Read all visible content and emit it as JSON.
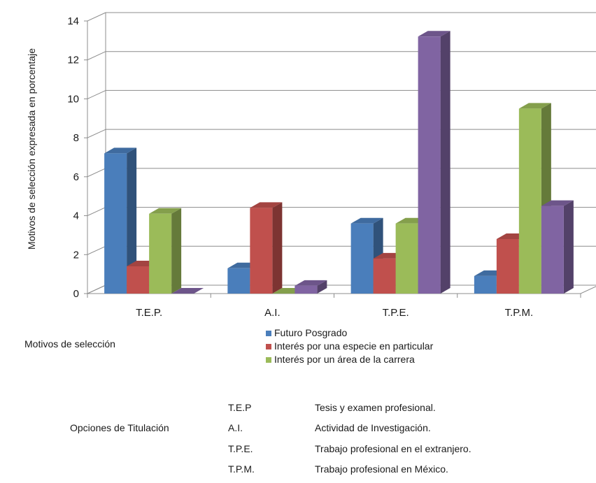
{
  "chart_data": {
    "type": "bar",
    "ylabel": "Motivos de selección expresada en porcentaje",
    "ylim": [
      0,
      14
    ],
    "yticks": [
      0,
      2,
      4,
      6,
      8,
      10,
      12,
      14
    ],
    "grid": true,
    "categories": [
      "T.E.P.",
      "A.I.",
      "T.P.E.",
      "T.P.M."
    ],
    "series": [
      {
        "name": "Futuro Posgrado",
        "color": "#4a7ebb",
        "values": [
          7.2,
          1.3,
          3.6,
          0.9
        ]
      },
      {
        "name": "Interés por una especie en particular",
        "color": "#c0504d",
        "values": [
          1.4,
          4.4,
          1.8,
          2.8
        ]
      },
      {
        "name": "Interés por un área de la carrera",
        "color": "#9bbb59",
        "values": [
          4.1,
          0.0,
          3.6,
          9.5
        ]
      },
      {
        "name": "",
        "color": "#8064a2",
        "values": [
          0.0,
          0.4,
          13.2,
          4.5
        ]
      }
    ],
    "legend_position": "bottom"
  },
  "labels": {
    "motivos": "Motivos de selección",
    "opciones": "Opciones de Titulación"
  },
  "abbreviations": [
    {
      "code": "T.E.P",
      "meaning": "Tesis y examen profesional."
    },
    {
      "code": "A.I.",
      "meaning": "Actividad de Investigación."
    },
    {
      "code": "T.P.E.",
      "meaning": "Trabajo profesional en el extranjero."
    },
    {
      "code": "T.P.M.",
      "meaning": "Trabajo profesional en México."
    }
  ]
}
